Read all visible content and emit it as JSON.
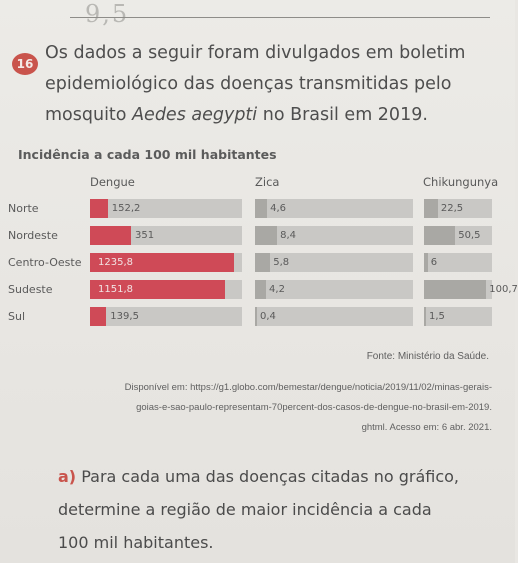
{
  "page": {
    "handwriting": "9,5"
  },
  "question": {
    "number": "16",
    "line1": "Os dados a seguir foram divulgados em boletim",
    "line2": "epidemiológico das doenças transmitidas pelo",
    "line3_start": "mosquito ",
    "line3_italic": "Aedes aegypti",
    "line3_end": " no Brasil em 2019."
  },
  "chart_data": {
    "type": "bar",
    "title": "Incidência a cada 100 mil habitantes",
    "categories": [
      "Norte",
      "Nordeste",
      "Centro-Oeste",
      "Sudeste",
      "Sul"
    ],
    "series": [
      {
        "name": "Dengue",
        "values": [
          152.2,
          351,
          1235.8,
          1151.8,
          139.5
        ],
        "labels": [
          "152,2",
          "351",
          "1235,8",
          "1151,8",
          "139,5"
        ],
        "color": "#cf4a57"
      },
      {
        "name": "Zica",
        "values": [
          4.6,
          8.4,
          5.8,
          4.2,
          0.4
        ],
        "labels": [
          "4,6",
          "8,4",
          "5,8",
          "4,2",
          "0,4"
        ],
        "color": "#a9a8a4"
      },
      {
        "name": "Chikungunya",
        "values": [
          22.5,
          50.5,
          6,
          100.7,
          1.5
        ],
        "labels": [
          "22,5",
          "50,5",
          "6",
          "100,7",
          "1,5"
        ],
        "color": "#a9a8a4"
      }
    ],
    "source": "Fonte: Ministério da Saúde."
  },
  "citation": {
    "line1": "Disponível em: https://g1.globo.com/bemestar/dengue/noticia/2019/11/02/minas-gerais-",
    "line2": "goias-e-sao-paulo-representam-70percent-dos-casos-de-dengue-no-brasil-em-2019.",
    "line3": "ghtml. Acesso em: 6 abr. 2021."
  },
  "item_a": {
    "letter": "a)",
    "line1": "Para cada uma das doenças citadas no gráfico,",
    "line2": "determine a região de maior incidência a cada",
    "line3": "100 mil habitantes."
  }
}
